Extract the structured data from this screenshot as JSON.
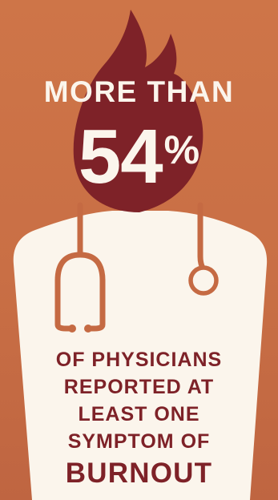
{
  "headline": {
    "prefix": "MORE THAN",
    "value": "54",
    "unit": "%"
  },
  "caption": {
    "lines": [
      "OF PHYSICIANS",
      "REPORTED AT",
      "LEAST ONE",
      "SYMPTOM OF"
    ],
    "emphasis": "BURNOUT"
  },
  "icons": [
    "flame-head-icon",
    "doctor-body-icon",
    "stethoscope-icon"
  ],
  "colors": {
    "background": "#cb7146",
    "flame": "#7e2228",
    "coat": "#fbf5ec",
    "stethoscope": "#c56a43",
    "caption_text": "#7e2228",
    "headline_text": "#fbf5ec"
  }
}
